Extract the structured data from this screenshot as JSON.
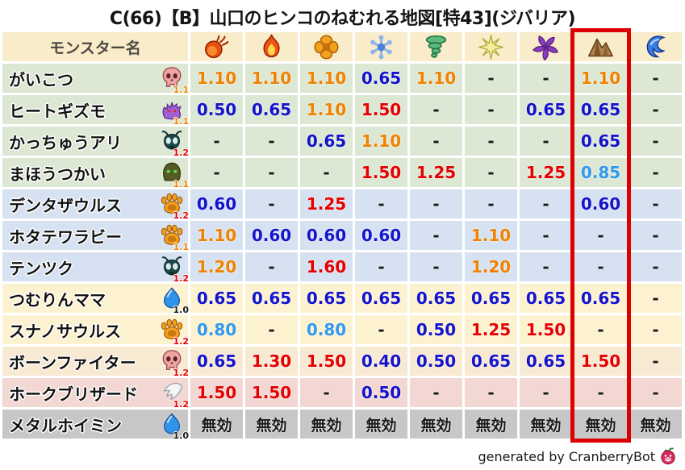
{
  "title": "C(66)【B】山口のヒンコのねむれる地図[特43](ジバリア)",
  "chart_data": {
    "type": "table",
    "title": "C(66)【B】山口のヒンコのねむれる地図[特43](ジバリア)",
    "name_header": "モンスター名",
    "element_columns": [
      {
        "icon": "fireball-icon"
      },
      {
        "icon": "flame-icon"
      },
      {
        "icon": "explosion-icon"
      },
      {
        "icon": "snowflake-icon"
      },
      {
        "icon": "tornado-icon"
      },
      {
        "icon": "spark-icon"
      },
      {
        "icon": "pinwheel-icon"
      },
      {
        "icon": "mountain-icon",
        "highlighted": true
      },
      {
        "icon": "wave-icon"
      }
    ],
    "highlighted_column_index": 7,
    "rows": [
      {
        "name": "がいこつ",
        "icon": "skull-icon",
        "multiplier_badge": "1.1",
        "badge_color": "orange",
        "row_color": "green",
        "values": [
          "1.10",
          "1.10",
          "1.10",
          "0.65",
          "1.10",
          "-",
          "-",
          "1.10",
          "-"
        ]
      },
      {
        "name": "ヒートギズモ",
        "icon": "ghost-icon",
        "multiplier_badge": "1.1",
        "badge_color": "orange",
        "row_color": "green",
        "values": [
          "0.50",
          "0.65",
          "1.10",
          "1.50",
          "-",
          "-",
          "0.65",
          "0.65",
          "-"
        ]
      },
      {
        "name": "かっちゅうアリ",
        "icon": "ant-icon",
        "multiplier_badge": "1.2",
        "badge_color": "red",
        "row_color": "green",
        "values": [
          "-",
          "-",
          "0.65",
          "1.10",
          "-",
          "-",
          "-",
          "0.65",
          "-"
        ]
      },
      {
        "name": "まほうつかい",
        "icon": "hood-icon",
        "multiplier_badge": "1.1",
        "badge_color": "orange",
        "row_color": "green",
        "values": [
          "-",
          "-",
          "-",
          "1.50",
          "1.25",
          "-",
          "1.25",
          "0.85",
          "-"
        ]
      },
      {
        "name": "デンタザウルス",
        "icon": "paw-icon",
        "multiplier_badge": "1.2",
        "badge_color": "red",
        "row_color": "blue",
        "values": [
          "0.60",
          "-",
          "1.25",
          "-",
          "-",
          "-",
          "-",
          "0.60",
          "-"
        ]
      },
      {
        "name": "ホタテワラビー",
        "icon": "paw-icon",
        "multiplier_badge": "1.1",
        "badge_color": "orange",
        "row_color": "blue",
        "values": [
          "1.10",
          "0.60",
          "0.60",
          "0.60",
          "-",
          "1.10",
          "-",
          "-",
          "-"
        ]
      },
      {
        "name": "テンツク",
        "icon": "ant-icon",
        "multiplier_badge": "1.2",
        "badge_color": "red",
        "row_color": "blue",
        "values": [
          "1.20",
          "-",
          "1.60",
          "-",
          "-",
          "1.20",
          "-",
          "-",
          "-"
        ]
      },
      {
        "name": "つむりんママ",
        "icon": "slime-icon",
        "multiplier_badge": "1.0",
        "badge_color": "black",
        "row_color": "cream",
        "values": [
          "0.65",
          "0.65",
          "0.65",
          "0.65",
          "0.65",
          "0.65",
          "0.65",
          "0.65",
          "-"
        ]
      },
      {
        "name": "スナノサウルス",
        "icon": "paw-icon",
        "multiplier_badge": "1.2",
        "badge_color": "red",
        "row_color": "cream",
        "values": [
          "0.80",
          "-",
          "0.80",
          "-",
          "0.50",
          "1.25",
          "1.50",
          "-",
          "-"
        ]
      },
      {
        "name": "ボーンファイター",
        "icon": "skull-icon",
        "multiplier_badge": "1.2",
        "badge_color": "red",
        "row_color": "tan",
        "values": [
          "0.65",
          "1.30",
          "1.50",
          "0.40",
          "0.50",
          "0.65",
          "0.65",
          "1.50",
          "-"
        ]
      },
      {
        "name": "ホークブリザード",
        "icon": "wing-icon",
        "multiplier_badge": "1.2",
        "badge_color": "red",
        "row_color": "pink",
        "values": [
          "1.50",
          "1.50",
          "-",
          "0.50",
          "-",
          "-",
          "-",
          "-",
          "-"
        ]
      },
      {
        "name": "メタルホイミン",
        "icon": "slime-icon",
        "multiplier_badge": "1.0",
        "badge_color": "black",
        "row_color": "gray",
        "values": [
          "無効",
          "無効",
          "無効",
          "無効",
          "無効",
          "無効",
          "無効",
          "無効",
          "無効"
        ]
      }
    ]
  },
  "palette": {
    "header_bg": "#f9ecca",
    "row_green": "#dde8d4",
    "row_blue": "#d6e2f1",
    "row_cream": "#fdf2d0",
    "row_tan": "#f8e9d3",
    "row_pink": "#f3d7d3",
    "row_gray": "#c7c7c7",
    "value_low": "#1414cc",
    "value_mid": "#3399ee",
    "value_high": "#f08200",
    "value_max": "#e60000",
    "value_neutral": "#1a1a1a",
    "badge_orange": "#f08200",
    "badge_red": "#e60000",
    "badge_black": "#1a1a1a",
    "highlight_border": "#dd0000"
  },
  "footer": {
    "text": "generated by CranberryBot",
    "icon": "cranberry-bot-icon"
  }
}
